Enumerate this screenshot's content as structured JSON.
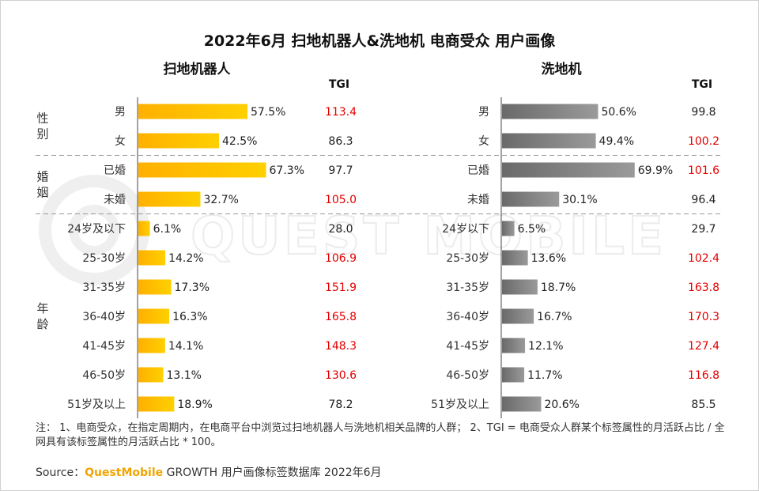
{
  "title": "2022年6月 扫地机器人&洗地机 电商受众 用户画像",
  "watermark": "QUEST MOBILE",
  "colors": {
    "left_bar": "#ffc000",
    "right_bar": "#808080",
    "tgi_high": "#e60000",
    "tgi_normal": "#222222"
  },
  "groups": [
    {
      "label": "性别",
      "rows": [
        0,
        1
      ]
    },
    {
      "label": "婚姻",
      "rows": [
        2,
        3
      ]
    },
    {
      "label": "年龄",
      "rows": [
        4,
        5,
        6,
        7,
        8,
        9,
        10
      ]
    }
  ],
  "chart_data": [
    {
      "type": "bar",
      "title": "扫地机器人",
      "tgi_header": "TGI",
      "categories": [
        "男",
        "女",
        "已婚",
        "未婚",
        "24岁及以下",
        "25-30岁",
        "31-35岁",
        "36-40岁",
        "41-45岁",
        "46-50岁",
        "51岁及以上"
      ],
      "values": [
        57.5,
        42.5,
        67.3,
        32.7,
        6.1,
        14.2,
        17.3,
        16.3,
        14.1,
        13.1,
        18.9
      ],
      "value_labels": [
        "57.5%",
        "42.5%",
        "67.3%",
        "32.7%",
        "6.1%",
        "14.2%",
        "17.3%",
        "16.3%",
        "14.1%",
        "13.1%",
        "18.9%"
      ],
      "tgi": [
        "113.4",
        "86.3",
        "97.7",
        "105.0",
        "28.0",
        "106.9",
        "151.9",
        "165.8",
        "148.3",
        "130.6",
        "78.2"
      ],
      "xlim": [
        0,
        100
      ]
    },
    {
      "type": "bar",
      "title": "洗地机",
      "tgi_header": "TGI",
      "categories": [
        "男",
        "女",
        "已婚",
        "未婚",
        "24岁以下",
        "25-30岁",
        "31-35岁",
        "36-40岁",
        "41-45岁",
        "46-50岁",
        "51岁及以上"
      ],
      "values": [
        50.6,
        49.4,
        69.9,
        30.1,
        6.5,
        13.6,
        18.7,
        16.7,
        12.1,
        11.7,
        20.6
      ],
      "value_labels": [
        "50.6%",
        "49.4%",
        "69.9%",
        "30.1%",
        "6.5%",
        "13.6%",
        "18.7%",
        "16.7%",
        "12.1%",
        "11.7%",
        "20.6%"
      ],
      "tgi": [
        "99.8",
        "100.2",
        "101.6",
        "96.4",
        "29.7",
        "102.4",
        "163.8",
        "170.3",
        "127.4",
        "116.8",
        "85.5"
      ],
      "xlim": [
        0,
        100
      ]
    }
  ],
  "note": "注： 1、电商受众，在指定周期内，在电商平台中浏览过扫地机器人与洗地机相关品牌的人群； 2、TGI = 电商受众人群某个标签属性的月活跃占比 / 全网具有该标签属性的月活跃占比 * 100。",
  "source": {
    "prefix": "Source：",
    "brand": "QuestMobile",
    "text": " GROWTH 用户画像标签数据库 2022年6月"
  }
}
